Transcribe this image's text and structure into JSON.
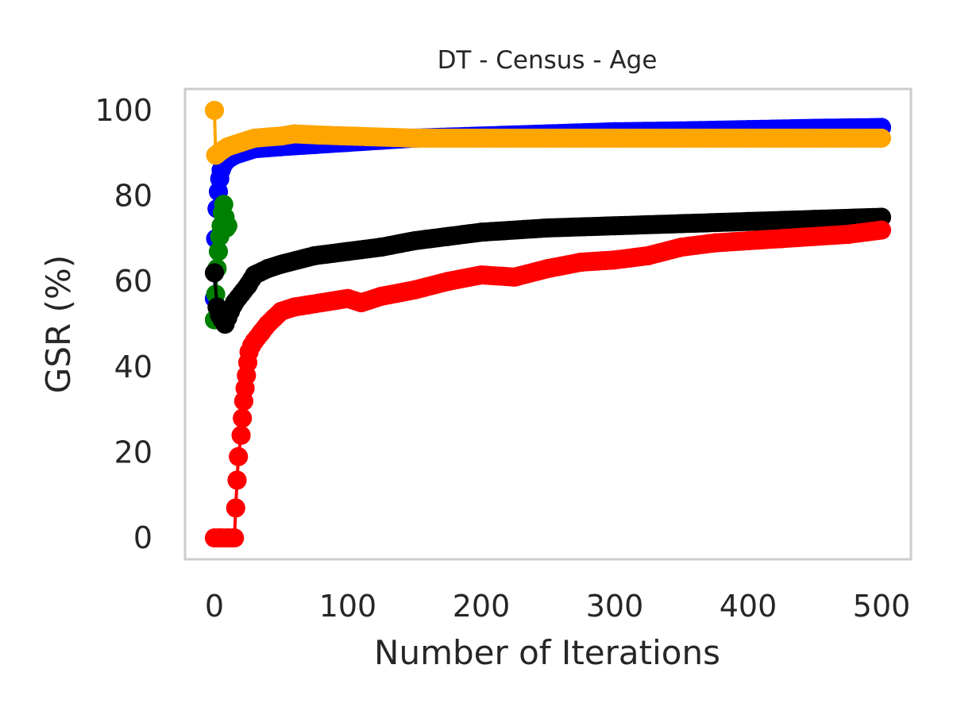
{
  "chart_data": {
    "type": "line",
    "title": "DT - Census - Age",
    "xlabel": "Number of Iterations",
    "ylabel": "GSR (%)",
    "xlim": [
      -22,
      522
    ],
    "ylim": [
      -5,
      105
    ],
    "xticks": [
      0,
      100,
      200,
      300,
      400,
      500
    ],
    "yticks": [
      0,
      20,
      40,
      60,
      80,
      100
    ],
    "grid": false,
    "legend": "none",
    "marker": "circle",
    "series": [
      {
        "color": "#0000ff",
        "points": [
          [
            0,
            56
          ],
          [
            1,
            70
          ],
          [
            2,
            77
          ],
          [
            3,
            81
          ],
          [
            4,
            84
          ],
          [
            5,
            86
          ],
          [
            7,
            87.5
          ],
          [
            10,
            88.5
          ],
          [
            15,
            89.5
          ],
          [
            20,
            90
          ],
          [
            30,
            91
          ],
          [
            50,
            91.5
          ],
          [
            75,
            92
          ],
          [
            100,
            92.5
          ],
          [
            150,
            93.5
          ],
          [
            200,
            94
          ],
          [
            250,
            94.5
          ],
          [
            300,
            95
          ],
          [
            350,
            95.2
          ],
          [
            400,
            95.5
          ],
          [
            450,
            95.8
          ],
          [
            500,
            96
          ]
        ]
      },
      {
        "color": "#ffa500",
        "points": [
          [
            0,
            100
          ],
          [
            1,
            89.5
          ],
          [
            3,
            90
          ],
          [
            5,
            90.5
          ],
          [
            10,
            91.5
          ],
          [
            20,
            92.5
          ],
          [
            30,
            93.5
          ],
          [
            50,
            94
          ],
          [
            60,
            94.5
          ],
          [
            80,
            94.2
          ],
          [
            100,
            94
          ],
          [
            150,
            93.5
          ],
          [
            200,
            93.5
          ],
          [
            250,
            93.5
          ],
          [
            300,
            93.5
          ],
          [
            350,
            93.5
          ],
          [
            400,
            93.5
          ],
          [
            450,
            93.5
          ],
          [
            500,
            93.5
          ]
        ]
      },
      {
        "color": "#008000",
        "points": [
          [
            0,
            51
          ],
          [
            1,
            57
          ],
          [
            2,
            63
          ],
          [
            3,
            67
          ],
          [
            4,
            70.5
          ],
          [
            5,
            73
          ],
          [
            6,
            76
          ],
          [
            7,
            78
          ],
          [
            8,
            75
          ],
          [
            9,
            72.5
          ],
          [
            10,
            73
          ]
        ]
      },
      {
        "color": "#000000",
        "points": [
          [
            0,
            62
          ],
          [
            2,
            54
          ],
          [
            4,
            52
          ],
          [
            6,
            51
          ],
          [
            8,
            50
          ],
          [
            10,
            51.5
          ],
          [
            12,
            53
          ],
          [
            15,
            55
          ],
          [
            20,
            57
          ],
          [
            25,
            59
          ],
          [
            30,
            61.5
          ],
          [
            40,
            63
          ],
          [
            50,
            64
          ],
          [
            75,
            66
          ],
          [
            100,
            67
          ],
          [
            125,
            68
          ],
          [
            150,
            69.5
          ],
          [
            175,
            70.5
          ],
          [
            200,
            71.5
          ],
          [
            250,
            72.5
          ],
          [
            300,
            73
          ],
          [
            350,
            73.5
          ],
          [
            400,
            74
          ],
          [
            450,
            74.5
          ],
          [
            500,
            75
          ]
        ]
      },
      {
        "color": "#ff0000",
        "points": [
          [
            0,
            0
          ],
          [
            5,
            0
          ],
          [
            10,
            0
          ],
          [
            15,
            0
          ],
          [
            16,
            7
          ],
          [
            17,
            13.5
          ],
          [
            18,
            19
          ],
          [
            20,
            24
          ],
          [
            21,
            28
          ],
          [
            22,
            32
          ],
          [
            23,
            35
          ],
          [
            24,
            38
          ],
          [
            25,
            41
          ],
          [
            26,
            43.5
          ],
          [
            28,
            45
          ],
          [
            30,
            46
          ],
          [
            35,
            48
          ],
          [
            40,
            50
          ],
          [
            45,
            51.5
          ],
          [
            50,
            53
          ],
          [
            60,
            54
          ],
          [
            70,
            54.5
          ],
          [
            80,
            55
          ],
          [
            90,
            55.5
          ],
          [
            100,
            56
          ],
          [
            110,
            55
          ],
          [
            125,
            56.5
          ],
          [
            150,
            58
          ],
          [
            175,
            60
          ],
          [
            200,
            61.5
          ],
          [
            225,
            61
          ],
          [
            250,
            63
          ],
          [
            275,
            64.5
          ],
          [
            300,
            65
          ],
          [
            325,
            66
          ],
          [
            350,
            68
          ],
          [
            375,
            69
          ],
          [
            400,
            69.5
          ],
          [
            425,
            70
          ],
          [
            450,
            70.5
          ],
          [
            475,
            71
          ],
          [
            500,
            72
          ]
        ]
      }
    ]
  }
}
